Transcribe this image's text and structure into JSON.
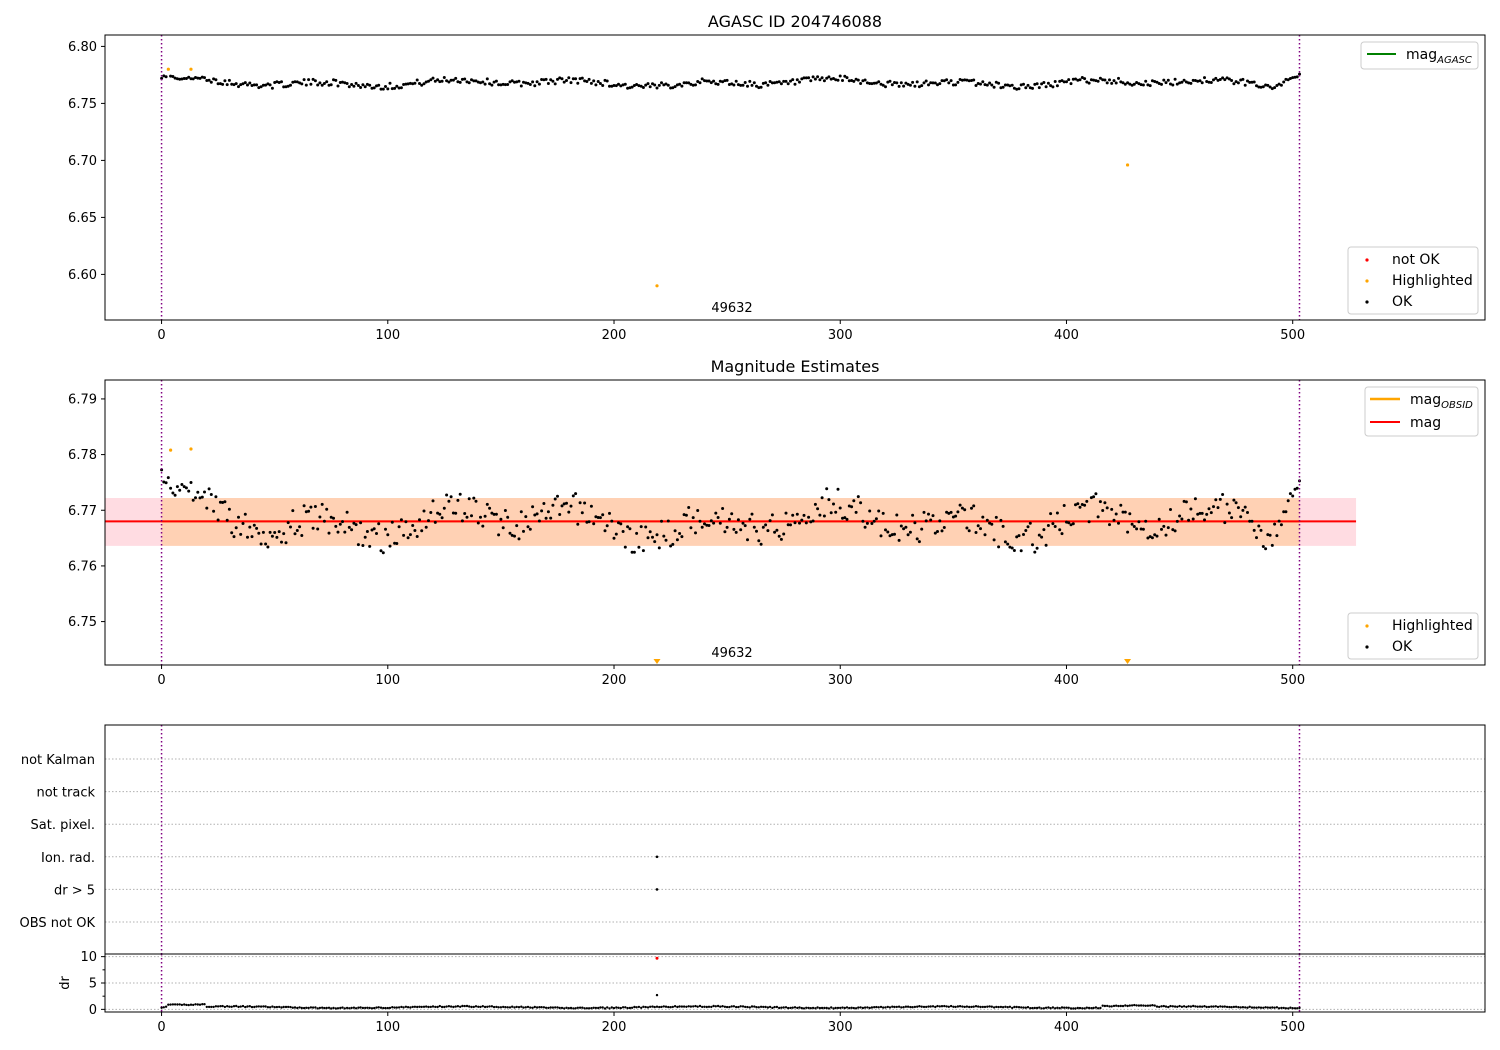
{
  "chart_data": [
    {
      "type": "scatter",
      "title": "AGASC ID 204746088",
      "xlim": [
        -25,
        585
      ],
      "ylim": [
        6.56,
        6.81
      ],
      "xticks": [
        0,
        100,
        200,
        300,
        400,
        500
      ],
      "xtick_labels": [
        "0",
        "100",
        "200",
        "300",
        "400",
        "500"
      ],
      "yticks": [
        6.6,
        6.65,
        6.7,
        6.75,
        6.8
      ],
      "ytick_labels": [
        "6.60",
        "6.65",
        "6.70",
        "6.75",
        "6.80"
      ],
      "annotation": {
        "text": "49632",
        "x": 241,
        "y": 6.566
      },
      "vlines": [
        0,
        503
      ],
      "lines": [
        {
          "name": "mag",
          "name_sub": "AGASC",
          "color": "#008000"
        }
      ],
      "marker_legend": [
        {
          "name": "not OK",
          "color": "#ff0000"
        },
        {
          "name": "Highlighted",
          "color": "#ffa500"
        },
        {
          "name": "OK",
          "color": "#000000"
        }
      ],
      "highlighted": {
        "x": [
          3,
          13,
          219,
          427
        ],
        "y": [
          6.78,
          6.78,
          6.59,
          6.696
        ]
      },
      "ok": {
        "x_start": 0,
        "x_end": 503,
        "count": 504,
        "baseline": 6.768,
        "amplitude": 0.005,
        "ends": [
          6.773,
          6.776
        ]
      },
      "grid": false,
      "legend_lines": "top-right",
      "legend_markers": "bottom-right"
    },
    {
      "type": "scatter",
      "title": "Magnitude Estimates",
      "xlim": [
        -25,
        585
      ],
      "ylim": [
        6.7422,
        6.7934
      ],
      "xticks": [
        0,
        100,
        200,
        300,
        400,
        500
      ],
      "xtick_labels": [
        "0",
        "100",
        "200",
        "300",
        "400",
        "500"
      ],
      "yticks": [
        6.75,
        6.76,
        6.77,
        6.78,
        6.79
      ],
      "ytick_labels": [
        "6.75",
        "6.76",
        "6.77",
        "6.78",
        "6.79"
      ],
      "annotation": {
        "text": "49632",
        "x": 241,
        "y": 6.7425
      },
      "vlines": [
        0,
        503
      ],
      "mag_line": {
        "y": 6.768,
        "x_range": [
          -25,
          528
        ],
        "band": [
          6.7636,
          6.7722
        ],
        "color": "#ff0000"
      },
      "lines": [
        {
          "name": "mag",
          "name_sub": "OBSID",
          "color": "#ffa500"
        },
        {
          "name": "mag",
          "name_sub": "",
          "color": "#ff0000"
        }
      ],
      "marker_legend": [
        {
          "name": "Highlighted",
          "color": "#ffa500"
        },
        {
          "name": "OK",
          "color": "#000000"
        }
      ],
      "highlighted": {
        "x": [
          4,
          13
        ],
        "y": [
          6.7808,
          6.781
        ]
      },
      "off_scale_markers": {
        "x": [
          219,
          427
        ],
        "direction": "down",
        "color": "#ffa500"
      },
      "ok": {
        "x_start": 0,
        "x_end": 503,
        "count": 504,
        "baseline": 6.768,
        "amplitude": 0.005,
        "ends": [
          6.776,
          6.776
        ]
      },
      "grid": false,
      "legend_lines": "top-right",
      "legend_markers": "bottom-right"
    },
    {
      "type": "scatter",
      "xlim": [
        -25,
        585
      ],
      "categories": [
        "not Kalman",
        "not track",
        "Sat. pixel.",
        "Ion. rad.",
        "dr > 5",
        "OBS not OK"
      ],
      "flag_points": {
        "x": [
          219,
          219
        ],
        "category": [
          "Ion. rad.",
          "dr > 5"
        ]
      },
      "vlines": [
        0,
        503
      ],
      "grid": true
    },
    {
      "type": "scatter",
      "ylabel": "dr",
      "xlim": [
        -25,
        585
      ],
      "ylim": [
        -0.5,
        10.5
      ],
      "xticks": [
        0,
        100,
        200,
        300,
        400,
        500
      ],
      "xtick_labels": [
        "0",
        "100",
        "200",
        "300",
        "400",
        "500"
      ],
      "yticks": [
        0,
        5,
        10
      ],
      "ytick_labels": [
        "0",
        "5",
        "10"
      ],
      "vlines": [
        0,
        503
      ],
      "not_ok": {
        "x": [
          219
        ],
        "y": [
          9.7
        ]
      },
      "outlier": {
        "x": [
          219
        ],
        "y": [
          2.7
        ]
      },
      "ok": {
        "x_start": 0,
        "x_end": 503,
        "count": 504,
        "baseline": 0.3
      },
      "grid": true
    }
  ]
}
